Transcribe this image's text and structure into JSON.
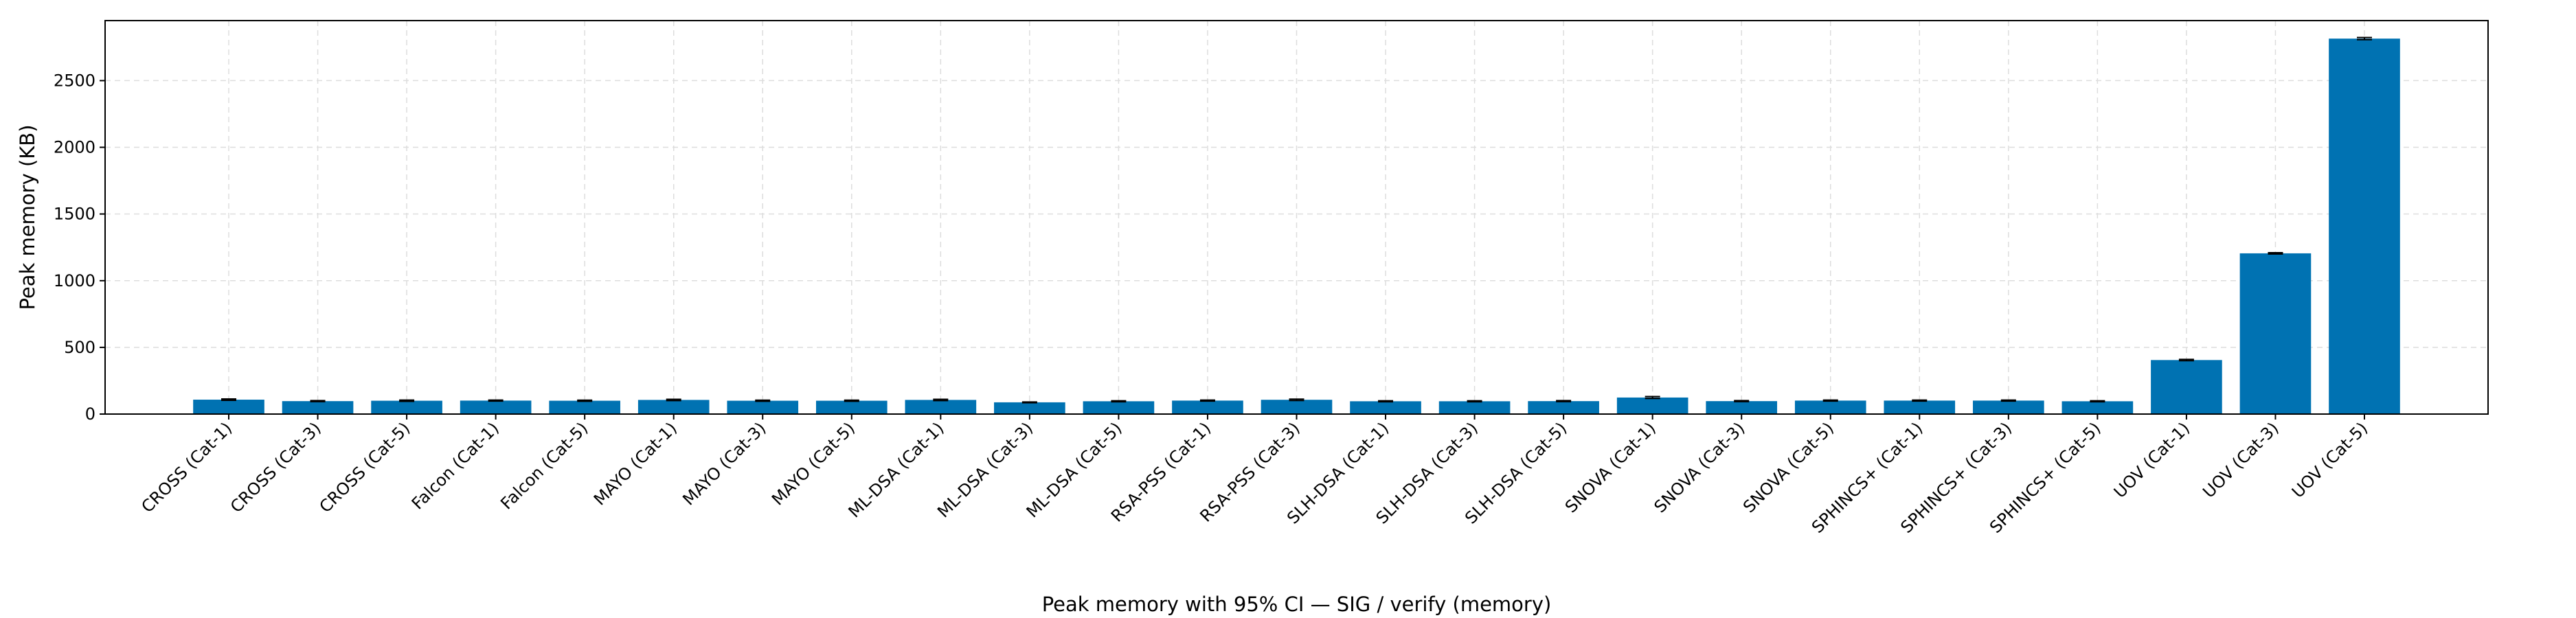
{
  "chart_data": {
    "type": "bar",
    "title": "",
    "xlabel": "Peak memory with 95% CI — SIG / verify (memory)",
    "ylabel": "Peak memory (KB)",
    "ylim": [
      0,
      2950
    ],
    "yticks": [
      0,
      500,
      1000,
      1500,
      2000,
      2500
    ],
    "grid": true,
    "colors": {
      "bar": "#0072B2",
      "error": "#000000",
      "grid": "#dddddd"
    },
    "categories": [
      "CROSS (Cat-1)",
      "CROSS (Cat-3)",
      "CROSS (Cat-5)",
      "Falcon (Cat-1)",
      "Falcon (Cat-5)",
      "MAYO (Cat-1)",
      "MAYO (Cat-3)",
      "MAYO (Cat-5)",
      "ML-DSA (Cat-1)",
      "ML-DSA (Cat-3)",
      "ML-DSA (Cat-5)",
      "RSA-PSS (Cat-1)",
      "RSA-PSS (Cat-3)",
      "SLH-DSA (Cat-1)",
      "SLH-DSA (Cat-3)",
      "SLH-DSA (Cat-5)",
      "SNOVA (Cat-1)",
      "SNOVA (Cat-3)",
      "SNOVA (Cat-5)",
      "SPHINCS+ (Cat-1)",
      "SPHINCS+ (Cat-3)",
      "SPHINCS+ (Cat-5)",
      "UOV (Cat-1)",
      "UOV (Cat-3)",
      "UOV (Cat-5)"
    ],
    "values": [
      108,
      97,
      100,
      101,
      100,
      106,
      100,
      100,
      106,
      88,
      96,
      101,
      107,
      96,
      96,
      97,
      124,
      97,
      101,
      101,
      101,
      96,
      405,
      1205,
      2815
    ],
    "ci": [
      5,
      4,
      5,
      4,
      4,
      5,
      4,
      4,
      5,
      3,
      4,
      4,
      5,
      4,
      4,
      4,
      7,
      4,
      4,
      4,
      4,
      4,
      5,
      5,
      8
    ]
  }
}
